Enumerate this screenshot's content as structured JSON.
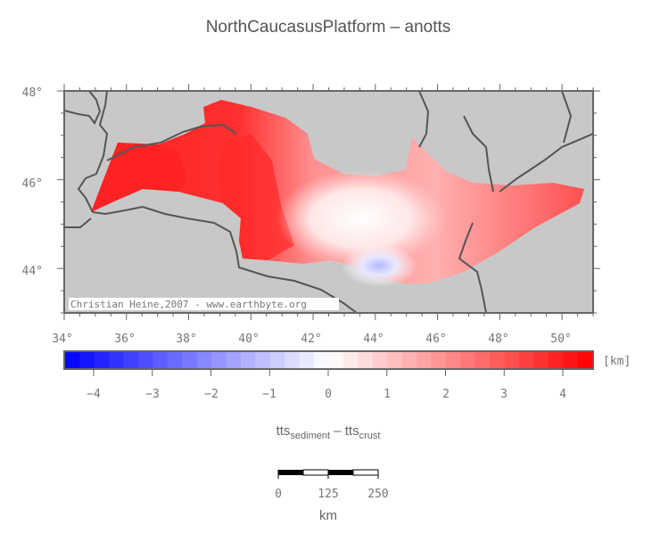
{
  "title": "NorthCaucasusPlatform – anotts",
  "map": {
    "credit": "Christian Heine,2007 - www.earthbyte.org",
    "lon_ticks": [
      "34°",
      "36°",
      "38°",
      "40°",
      "42°",
      "44°",
      "46°",
      "48°",
      "50°"
    ],
    "lat_ticks": [
      "48°",
      "46°",
      "44°"
    ],
    "lon_range": [
      34,
      51
    ],
    "lat_range": [
      43,
      48
    ],
    "background_color": "#c8c8c8",
    "coast_color": "#555555"
  },
  "colorbar": {
    "unit": "[km]",
    "ticks": [
      "−4",
      "−3",
      "−2",
      "−1",
      "0",
      "1",
      "2",
      "3",
      "4"
    ],
    "range": [
      -4.5,
      4.5
    ],
    "min_color": "#0000ff",
    "mid_color": "#ffffff",
    "max_color": "#ff0000"
  },
  "variable_label": {
    "base1": "tts",
    "sub1": "sediment",
    "op": " – ",
    "base2": "tts",
    "sub2": "crust"
  },
  "scalebar": {
    "ticks": [
      "0",
      "125",
      "250"
    ],
    "unit": "km"
  }
}
